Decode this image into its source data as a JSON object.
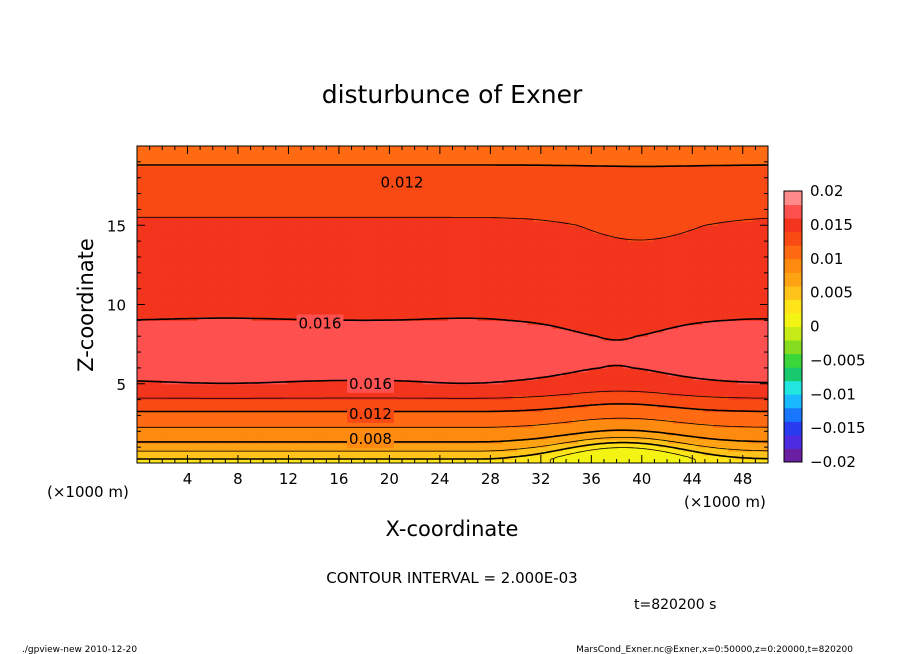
{
  "chart_data": {
    "type": "heatmap",
    "title": "disturbunce of Exner",
    "xlabel": "X-coordinate",
    "ylabel": "Z-coordinate",
    "x_units_left": "(×1000 m)",
    "x_units_right": "(×1000 m)",
    "xlim": [
      0,
      50
    ],
    "ylim": [
      0,
      20
    ],
    "x_ticks": [
      4,
      8,
      12,
      16,
      20,
      24,
      28,
      32,
      36,
      40,
      44,
      48
    ],
    "x_tick_labels": [
      "4",
      "8",
      "12",
      "16",
      "20",
      "24",
      "28",
      "32",
      "36",
      "40",
      "44",
      "48"
    ],
    "y_ticks": [
      5,
      10,
      15
    ],
    "y_tick_labels": [
      "5",
      "10",
      "15"
    ],
    "colorbar": {
      "labels": [
        "0.02",
        "0.015",
        "0.01",
        "0.005",
        "0",
        "−0.005",
        "−0.01",
        "−0.015",
        "−0.02"
      ],
      "colors": [
        "#6a1fa2",
        "#4c2be0",
        "#2a3cf0",
        "#1976ff",
        "#18b9ff",
        "#21e6e0",
        "#18c96e",
        "#3ad63a",
        "#86dd20",
        "#c5ec16",
        "#f4f414",
        "#ffe41a",
        "#ffc31a",
        "#ffa214",
        "#ff8a10",
        "#ff6a12",
        "#f94a14",
        "#f2351c",
        "#ff5050",
        "#ff8a8a"
      ]
    },
    "contour_labels": [
      {
        "value": 0.012,
        "text": "0.012",
        "x": 21,
        "y": 17.7
      },
      {
        "value": 0.016,
        "text": "0.016",
        "x": 14.5,
        "y": 8.8
      },
      {
        "value": 0.016,
        "text": "0.016",
        "x": 18.5,
        "y": 5.0
      },
      {
        "value": 0.012,
        "text": "0.012",
        "x": 18.5,
        "y": 3.1
      },
      {
        "value": 0.008,
        "text": "0.008",
        "x": 18.5,
        "y": 1.5
      }
    ],
    "field_profile": {
      "z_levels": [
        0,
        0.5,
        1,
        1.5,
        2,
        2.5,
        3,
        3.5,
        4,
        5,
        6,
        7,
        8,
        9,
        10,
        11,
        12,
        13,
        14,
        15,
        16,
        17,
        18,
        19,
        20
      ],
      "exner_disturbance_at_x20": [
        0.003,
        0.005,
        0.007,
        0.0085,
        0.0095,
        0.0105,
        0.0115,
        0.0125,
        0.0138,
        0.0158,
        0.0167,
        0.0172,
        0.0168,
        0.016,
        0.0155,
        0.015,
        0.0148,
        0.0146,
        0.0144,
        0.0142,
        0.0138,
        0.0134,
        0.0128,
        0.0118,
        0.011
      ]
    },
    "contour_interval_text": "CONTOUR INTERVAL = 2.000E-03",
    "time_text": "t=820200 s"
  },
  "footer": {
    "left": "./gpview-new   2010-12-20",
    "right": "MarsCond_Exner.nc@Exner,x=0:50000,z=0:20000,t=820200"
  }
}
